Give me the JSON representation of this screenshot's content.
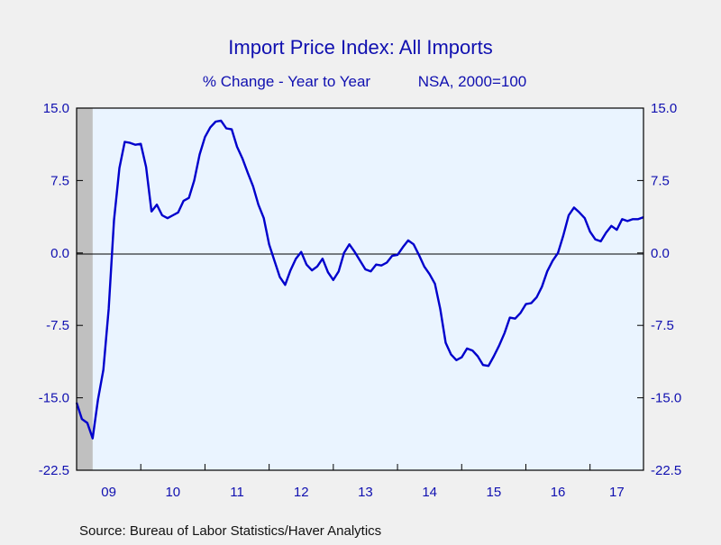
{
  "chart_data": {
    "type": "line",
    "title": "Import Price Index: All Imports",
    "subtitle_left": "% Change - Year to Year",
    "subtitle_right": "NSA, 2000=100",
    "source": "Source:  Bureau of Labor Statistics/Haver Analytics",
    "ylim": [
      -22.5,
      15.0
    ],
    "yticks": [
      "15.0",
      "7.5",
      "0.0",
      "-7.5",
      "-15.0",
      "-22.5"
    ],
    "ytick_values": [
      15.0,
      7.5,
      0.0,
      -7.5,
      -15.0,
      -22.5
    ],
    "x_start": 2009.0,
    "x_end": 2017.833,
    "xticks": [
      "09",
      "10",
      "11",
      "12",
      "13",
      "14",
      "15",
      "16",
      "17"
    ],
    "xtick_years": [
      2009,
      2010,
      2011,
      2012,
      2013,
      2014,
      2015,
      2016,
      2017
    ],
    "recession_shade": [
      2009.0,
      2009.25
    ],
    "zero_line": true,
    "grid": false,
    "colors": {
      "line": "#0000cc",
      "plot_bg": "#eaf4ff",
      "text": "#1010b0",
      "shade": "#c0c0c0",
      "page_bg": "#f0f0f0"
    },
    "series": [
      {
        "x": [
          2009.0,
          2009.083,
          2009.167,
          2009.25,
          2009.333,
          2009.417,
          2009.5,
          2009.583,
          2009.667,
          2009.75,
          2009.833,
          2009.917,
          2010.0,
          2010.083,
          2010.167,
          2010.25,
          2010.333,
          2010.417,
          2010.5,
          2010.583,
          2010.667,
          2010.75,
          2010.833,
          2010.917,
          2011.0,
          2011.083,
          2011.167,
          2011.25,
          2011.333,
          2011.417,
          2011.5,
          2011.583,
          2011.667,
          2011.75,
          2011.833,
          2011.917,
          2012.0,
          2012.083,
          2012.167,
          2012.25,
          2012.333,
          2012.417,
          2012.5,
          2012.583,
          2012.667,
          2012.75,
          2012.833,
          2012.917,
          2013.0,
          2013.083,
          2013.167,
          2013.25,
          2013.333,
          2013.417,
          2013.5,
          2013.583,
          2013.667,
          2013.75,
          2013.833,
          2013.917,
          2014.0,
          2014.083,
          2014.167,
          2014.25,
          2014.333,
          2014.417,
          2014.5,
          2014.583,
          2014.667,
          2014.75,
          2014.833,
          2014.917,
          2015.0,
          2015.083,
          2015.167,
          2015.25,
          2015.333,
          2015.417,
          2015.5,
          2015.583,
          2015.667,
          2015.75,
          2015.833,
          2015.917,
          2016.0,
          2016.083,
          2016.167,
          2016.25,
          2016.333,
          2016.417,
          2016.5,
          2016.583,
          2016.667,
          2016.75,
          2016.833,
          2016.917,
          2017.0,
          2017.083,
          2017.167,
          2017.25,
          2017.333,
          2017.417,
          2017.5,
          2017.583,
          2017.667,
          2017.75,
          2017.833
        ],
        "y": [
          -15.5,
          -17.2,
          -17.6,
          -19.2,
          -15.2,
          -12.1,
          -5.8,
          3.4,
          8.8,
          11.5,
          11.4,
          11.2,
          11.3,
          8.9,
          4.3,
          5.0,
          3.9,
          3.6,
          3.9,
          4.2,
          5.4,
          5.7,
          7.5,
          10.2,
          12.0,
          13.0,
          13.6,
          13.7,
          12.9,
          12.8,
          11.0,
          9.8,
          8.3,
          6.9,
          5.0,
          3.6,
          0.9,
          -0.8,
          -2.5,
          -3.3,
          -1.8,
          -0.6,
          0.1,
          -1.2,
          -1.8,
          -1.4,
          -0.6,
          -2.0,
          -2.8,
          -1.9,
          0.0,
          0.9,
          0.1,
          -0.8,
          -1.7,
          -1.9,
          -1.2,
          -1.3,
          -1.0,
          -0.3,
          -0.2,
          0.6,
          1.3,
          0.9,
          -0.2,
          -1.4,
          -2.2,
          -3.2,
          -5.8,
          -9.3,
          -10.5,
          -11.1,
          -10.8,
          -9.9,
          -10.1,
          -10.7,
          -11.6,
          -11.7,
          -10.7,
          -9.6,
          -8.3,
          -6.7,
          -6.8,
          -6.2,
          -5.3,
          -5.2,
          -4.6,
          -3.5,
          -1.9,
          -0.8,
          0.0,
          1.8,
          3.9,
          4.7,
          4.2,
          3.6,
          2.2,
          1.4,
          1.2,
          2.1,
          2.8,
          2.4,
          3.5,
          3.3,
          3.5,
          3.5,
          3.7
        ]
      }
    ]
  }
}
